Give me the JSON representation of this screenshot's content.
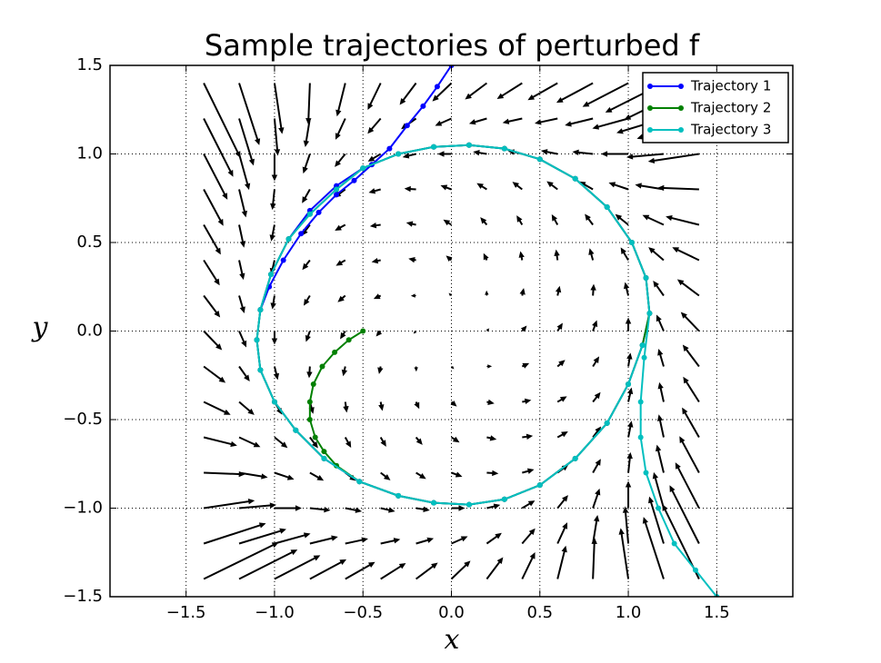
{
  "chart_data": {
    "type": "quiver",
    "title": "Sample trajectories of perturbed f",
    "xlabel": "x",
    "ylabel": "y",
    "xlim": [
      -1.93,
      1.93
    ],
    "ylim": [
      -1.5,
      1.5
    ],
    "xticks": [
      {
        "value": -1.5,
        "label": "−1.5"
      },
      {
        "value": -1,
        "label": "−1.0"
      },
      {
        "value": -0.5,
        "label": "−0.5"
      },
      {
        "value": 0,
        "label": "0.0"
      },
      0.5,
      {
        "value": 1,
        "label": "1.0"
      },
      1.5
    ],
    "yticks": [
      {
        "value": -1.5,
        "label": "−1.5"
      },
      {
        "value": -1,
        "label": "−1.0"
      },
      {
        "value": -0.5,
        "label": "−0.5"
      },
      {
        "value": 0,
        "label": "0.0"
      },
      0.5,
      {
        "value": 1,
        "label": "1.0"
      },
      1.5
    ],
    "grid": true,
    "legend": "upper right",
    "quiver": {
      "color": "#000000",
      "x": [
        -1.4,
        -1.2,
        -1,
        -0.8,
        -0.6,
        -0.4,
        -0.2,
        0,
        0.2,
        0.4,
        0.6,
        0.8,
        1,
        1.2,
        1.4
      ],
      "y": [
        -1.4,
        -1.2,
        -1,
        -0.8,
        -0.6,
        -0.4,
        -0.2,
        0,
        0.2,
        0.4,
        0.6,
        0.8,
        1,
        1.2,
        1.4
      ],
      "u": [
        [
          5.49,
          4.28,
          3.36,
          2.68,
          2.19,
          1.85,
          1.6,
          1.4,
          1.2,
          0.95,
          0.61,
          0.12,
          -0.56,
          -1.48,
          -2.69
        ],
        [
          4.56,
          3.46,
          2.64,
          2.06,
          1.68,
          1.44,
          1.3,
          1.2,
          1.1,
          0.96,
          0.72,
          0.34,
          -0.24,
          -1.06,
          -2.16
        ],
        [
          3.74,
          2.73,
          2,
          1.51,
          1.22,
          1.06,
          1.01,
          1,
          0.99,
          0.94,
          0.78,
          0.49,
          0,
          -0.73,
          -1.74
        ],
        [
          3.04,
          2.1,
          1.44,
          1.02,
          0.8,
          0.72,
          0.74,
          0.8,
          0.86,
          0.88,
          0.8,
          0.58,
          0.16,
          -0.5,
          -1.44
        ],
        [
          2.45,
          1.56,
          0.96,
          0.6,
          0.43,
          0.41,
          0.48,
          0.6,
          0.72,
          0.79,
          0.77,
          0.6,
          0.24,
          -0.36,
          -1.25
        ],
        [
          1.97,
          1.12,
          0.56,
          0.24,
          0.11,
          0.13,
          0.24,
          0.4,
          0.56,
          0.67,
          0.69,
          0.56,
          0.24,
          -0.32,
          -1.17
        ],
        [
          1.6,
          0.78,
          0.24,
          -0.06,
          -0.16,
          -0.12,
          0.02,
          0.2,
          0.38,
          0.52,
          0.56,
          0.46,
          0.16,
          -0.38,
          -1.2
        ],
        [
          1.34,
          0.53,
          0,
          -0.29,
          -0.38,
          -0.34,
          -0.19,
          0,
          0.19,
          0.34,
          0.38,
          0.29,
          0,
          -0.53,
          -1.34
        ],
        [
          1.2,
          0.38,
          -0.16,
          -0.46,
          -0.56,
          -0.52,
          -0.38,
          -0.2,
          -0.02,
          0.12,
          0.16,
          0.06,
          -0.24,
          -0.78,
          -1.6
        ],
        [
          1.17,
          0.32,
          -0.24,
          -0.56,
          -0.69,
          -0.67,
          -0.56,
          -0.4,
          -0.24,
          -0.13,
          -0.11,
          -0.24,
          -0.56,
          -1.12,
          -1.97
        ],
        [
          1.25,
          0.36,
          -0.24,
          -0.6,
          -0.77,
          -0.79,
          -0.72,
          -0.6,
          -0.48,
          -0.41,
          -0.43,
          -0.6,
          -0.96,
          -1.56,
          -2.45
        ],
        [
          1.44,
          0.5,
          -0.16,
          -0.58,
          -0.8,
          -0.88,
          -0.86,
          -0.8,
          -0.74,
          -0.72,
          -0.8,
          -1.02,
          -1.44,
          -2.1,
          -3.04
        ],
        [
          1.74,
          0.73,
          0,
          -0.49,
          -0.78,
          -0.94,
          -0.99,
          -1,
          -1.01,
          -1.06,
          -1.22,
          -1.51,
          -2,
          -2.73,
          -3.74
        ],
        [
          2.16,
          1.06,
          0.24,
          -0.34,
          -0.72,
          -0.96,
          -1.1,
          -1.2,
          -1.3,
          -1.44,
          -1.68,
          -2.06,
          -2.64,
          -3.46,
          -4.56
        ],
        [
          2.69,
          1.48,
          0.56,
          -0.12,
          -0.61,
          -0.95,
          -1.2,
          -1.4,
          -1.6,
          -1.85,
          -2.19,
          -2.68,
          -3.36,
          -4.28,
          -5.49
        ]
      ],
      "v": [
        [
          2.69,
          2.16,
          1.74,
          1.44,
          1.25,
          1.17,
          1.2,
          1.34,
          1.6,
          1.97,
          2.45,
          3.04,
          3.74,
          4.56,
          5.49
        ],
        [
          1.48,
          1.06,
          0.73,
          0.5,
          0.36,
          0.32,
          0.38,
          0.53,
          0.78,
          1.12,
          1.56,
          2.1,
          2.73,
          3.46,
          4.28
        ],
        [
          0.56,
          0.24,
          0,
          -0.16,
          -0.24,
          -0.24,
          -0.16,
          0,
          0.24,
          0.56,
          0.96,
          1.44,
          2,
          2.64,
          3.36
        ],
        [
          -0.12,
          -0.34,
          -0.49,
          -0.58,
          -0.6,
          -0.56,
          -0.46,
          -0.29,
          -0.06,
          0.24,
          0.6,
          1.02,
          1.51,
          2.06,
          2.68
        ],
        [
          -0.61,
          -0.72,
          -0.78,
          -0.8,
          -0.77,
          -0.69,
          -0.56,
          -0.38,
          -0.16,
          0.11,
          0.43,
          0.8,
          1.22,
          1.68,
          2.19
        ],
        [
          -0.95,
          -0.96,
          -0.94,
          -0.88,
          -0.79,
          -0.67,
          -0.52,
          -0.34,
          -0.12,
          0.13,
          0.41,
          0.72,
          1.06,
          1.44,
          1.85
        ],
        [
          -1.2,
          -1.1,
          -0.99,
          -0.86,
          -0.72,
          -0.56,
          -0.38,
          -0.19,
          0.02,
          0.24,
          0.48,
          0.74,
          1.01,
          1.3,
          1.6
        ],
        [
          -1.4,
          -1.2,
          -1,
          -0.8,
          -0.6,
          -0.4,
          -0.2,
          0,
          0.2,
          0.4,
          0.6,
          0.8,
          1,
          1.2,
          1.4
        ],
        [
          -1.6,
          -1.3,
          -1.01,
          -0.74,
          -0.48,
          -0.24,
          -0.02,
          0.19,
          0.38,
          0.56,
          0.72,
          0.86,
          0.99,
          1.1,
          1.2
        ],
        [
          -1.85,
          -1.44,
          -1.06,
          -0.72,
          -0.41,
          -0.13,
          0.12,
          0.34,
          0.52,
          0.67,
          0.79,
          0.88,
          0.94,
          0.96,
          0.95
        ],
        [
          -2.19,
          -1.68,
          -1.22,
          -0.8,
          -0.43,
          -0.11,
          0.16,
          0.38,
          0.56,
          0.69,
          0.77,
          0.8,
          0.78,
          0.72,
          0.61
        ],
        [
          -2.68,
          -2.06,
          -1.51,
          -1.02,
          -0.6,
          -0.24,
          0.06,
          0.29,
          0.46,
          0.56,
          0.6,
          0.58,
          0.49,
          0.34,
          0.12
        ],
        [
          -3.36,
          -2.64,
          -2,
          -1.44,
          -0.96,
          -0.56,
          -0.24,
          0,
          0.16,
          0.24,
          0.24,
          0.16,
          0,
          -0.24,
          -0.56
        ],
        [
          -4.28,
          -3.46,
          -2.73,
          -2.1,
          -1.56,
          -1.12,
          -0.78,
          -0.53,
          -0.38,
          -0.32,
          -0.36,
          -0.5,
          -0.73,
          -1.06,
          -1.48
        ],
        [
          -5.49,
          -4.56,
          -3.74,
          -3.04,
          -2.45,
          -1.97,
          -1.6,
          -1.34,
          -1.2,
          -1.17,
          -1.25,
          -1.44,
          -1.74,
          -2.16,
          -2.69
        ]
      ]
    },
    "series": [
      {
        "name": "Trajectory 1",
        "color": "#0000ff",
        "x": [
          0,
          -0.08,
          -0.16,
          -0.25,
          -0.35,
          -0.45,
          -0.55,
          -0.65,
          -0.75,
          -0.85,
          -0.95,
          -1.03,
          -1.08,
          -1.1,
          -1.08,
          -1.0,
          -0.88,
          -0.72,
          -0.52,
          -0.3,
          -0.1,
          0.1,
          0.3,
          0.5,
          0.7,
          0.88,
          1.0,
          1.08,
          1.12,
          1.1,
          1.02,
          0.88,
          0.7,
          0.5,
          0.3,
          0.1,
          -0.1,
          -0.3,
          -0.5,
          -0.65,
          -0.8,
          -0.92,
          -1.02,
          -1.08
        ],
        "y": [
          1.5,
          1.38,
          1.27,
          1.16,
          1.03,
          0.94,
          0.85,
          0.77,
          0.67,
          0.55,
          0.4,
          0.25,
          0.12,
          -0.05,
          -0.22,
          -0.4,
          -0.56,
          -0.72,
          -0.85,
          -0.93,
          -0.97,
          -0.98,
          -0.95,
          -0.87,
          -0.72,
          -0.52,
          -0.3,
          -0.08,
          0.1,
          0.3,
          0.5,
          0.7,
          0.86,
          0.97,
          1.03,
          1.05,
          1.04,
          1.0,
          0.92,
          0.82,
          0.68,
          0.52,
          0.32,
          0.12
        ]
      },
      {
        "name": "Trajectory 2",
        "color": "#008000",
        "x": [
          -0.5,
          -0.58,
          -0.66,
          -0.73,
          -0.78,
          -0.8,
          -0.8,
          -0.77,
          -0.72,
          -0.65,
          -0.52,
          -0.3,
          -0.1,
          0.1,
          0.3,
          0.5,
          0.7,
          0.88,
          1.0,
          1.08,
          1.12,
          1.1,
          1.02,
          0.88,
          0.7,
          0.5,
          0.3,
          0.1,
          -0.1,
          -0.3,
          -0.5,
          -0.65,
          -0.8,
          -0.92,
          -1.02,
          -1.08,
          -1.1,
          -1.08,
          -1.0,
          -0.88,
          -0.72
        ],
        "y": [
          0,
          -0.05,
          -0.12,
          -0.2,
          -0.3,
          -0.4,
          -0.5,
          -0.6,
          -0.68,
          -0.76,
          -0.85,
          -0.93,
          -0.97,
          -0.98,
          -0.95,
          -0.87,
          -0.72,
          -0.52,
          -0.3,
          -0.08,
          0.1,
          0.3,
          0.5,
          0.7,
          0.86,
          0.97,
          1.03,
          1.05,
          1.04,
          1.0,
          0.92,
          0.8,
          0.66,
          0.52,
          0.32,
          0.12,
          -0.05,
          -0.22,
          -0.4,
          -0.56,
          -0.72
        ]
      },
      {
        "name": "Trajectory 3",
        "color": "#00bfbf",
        "x": [
          1.5,
          1.38,
          1.26,
          1.17,
          1.1,
          1.07,
          1.07,
          1.09,
          1.12,
          1.1,
          1.02,
          0.88,
          0.7,
          0.5,
          0.3,
          0.1,
          -0.1,
          -0.3,
          -0.5,
          -0.65,
          -0.8,
          -0.92,
          -1.02,
          -1.08,
          -1.1,
          -1.08,
          -1.0,
          -0.88,
          -0.72,
          -0.52,
          -0.3,
          -0.1,
          0.1,
          0.3,
          0.5,
          0.7,
          0.88,
          1.0,
          1.08
        ],
        "y": [
          -1.5,
          -1.35,
          -1.2,
          -1.0,
          -0.8,
          -0.6,
          -0.4,
          -0.15,
          0.1,
          0.3,
          0.5,
          0.7,
          0.86,
          0.97,
          1.03,
          1.05,
          1.04,
          1.0,
          0.92,
          0.8,
          0.66,
          0.52,
          0.32,
          0.12,
          -0.05,
          -0.22,
          -0.4,
          -0.56,
          -0.72,
          -0.85,
          -0.93,
          -0.97,
          -0.98,
          -0.95,
          -0.87,
          -0.72,
          -0.52,
          -0.3,
          -0.08
        ]
      }
    ]
  }
}
